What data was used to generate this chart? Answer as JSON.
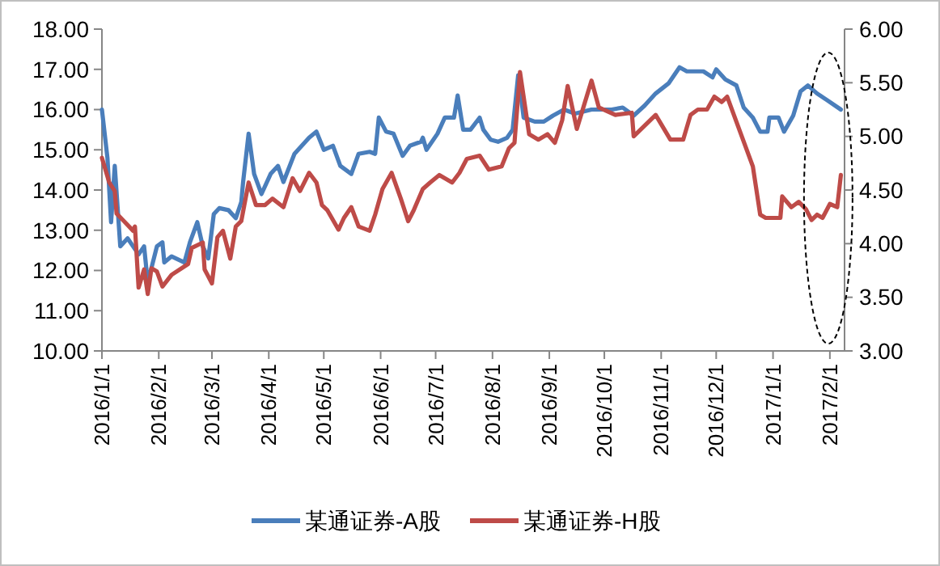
{
  "chart_data": {
    "type": "line",
    "legend": "bottom",
    "grid": false,
    "marker": "none",
    "line_style": "solid",
    "xlim": [
      "2016-01-01",
      "2017-02-09"
    ],
    "xticks": [
      {
        "value": "2016-01-01",
        "label": "2016/1/1"
      },
      {
        "value": "2016-02-01",
        "label": "2016/2/1"
      },
      {
        "value": "2016-03-01",
        "label": "2016/3/1"
      },
      {
        "value": "2016-04-01",
        "label": "2016/4/1"
      },
      {
        "value": "2016-05-01",
        "label": "2016/5/1"
      },
      {
        "value": "2016-06-01",
        "label": "2016/6/1"
      },
      {
        "value": "2016-07-01",
        "label": "2016/7/1"
      },
      {
        "value": "2016-08-01",
        "label": "2016/8/1"
      },
      {
        "value": "2016-09-01",
        "label": "2016/9/1"
      },
      {
        "value": "2016-10-01",
        "label": "2016/10/1"
      },
      {
        "value": "2016-11-01",
        "label": "2016/11/1"
      },
      {
        "value": "2016-12-01",
        "label": "2016/12/1"
      },
      {
        "value": "2017-01-01",
        "label": "2017/1/1"
      },
      {
        "value": "2017-02-01",
        "label": "2017/2/1"
      }
    ],
    "ylim": [
      10,
      18
    ],
    "yticks": [
      {
        "value": 10,
        "label": "10.00"
      },
      {
        "value": 11,
        "label": "11.00"
      },
      {
        "value": 12,
        "label": "12.00"
      },
      {
        "value": 13,
        "label": "13.00"
      },
      {
        "value": 14,
        "label": "14.00"
      },
      {
        "value": 15,
        "label": "15.00"
      },
      {
        "value": 16,
        "label": "16.00"
      },
      {
        "value": 17,
        "label": "17.00"
      },
      {
        "value": 18,
        "label": "18.00"
      }
    ],
    "y2lim": [
      3,
      6
    ],
    "y2ticks": [
      {
        "value": 3,
        "label": "3.00"
      },
      {
        "value": 3.5,
        "label": "3.50"
      },
      {
        "value": 4,
        "label": "4.00"
      },
      {
        "value": 4.5,
        "label": "4.50"
      },
      {
        "value": 5,
        "label": "5.00"
      },
      {
        "value": 5.5,
        "label": "5.50"
      },
      {
        "value": 6,
        "label": "6.00"
      }
    ],
    "series": [
      {
        "name": "某通证券-A股",
        "color": "#4a7ebb",
        "x": [
          "2016-01-01",
          "2016-01-04",
          "2016-01-06",
          "2016-01-08",
          "2016-01-11",
          "2016-01-15",
          "2016-01-21",
          "2016-01-24",
          "2016-01-26",
          "2016-01-31",
          "2016-02-03",
          "2016-02-04",
          "2016-02-08",
          "2016-02-15",
          "2016-02-18",
          "2016-02-22",
          "2016-02-25",
          "2016-02-28",
          "2016-03-02",
          "2016-03-05",
          "2016-03-10",
          "2016-03-14",
          "2016-03-17",
          "2016-03-18",
          "2016-03-21",
          "2016-03-24",
          "2016-03-28",
          "2016-04-02",
          "2016-04-06",
          "2016-04-09",
          "2016-04-15",
          "2016-04-23",
          "2016-04-27",
          "2016-05-01",
          "2016-05-06",
          "2016-05-10",
          "2016-05-16",
          "2016-05-20",
          "2016-05-26",
          "2016-05-29",
          "2016-05-31",
          "2016-06-04",
          "2016-06-08",
          "2016-06-13",
          "2016-06-17",
          "2016-06-23",
          "2016-06-24",
          "2016-06-26",
          "2016-07-02",
          "2016-07-06",
          "2016-07-11",
          "2016-07-13",
          "2016-07-16",
          "2016-07-20",
          "2016-07-25",
          "2016-07-27",
          "2016-07-31",
          "2016-08-04",
          "2016-08-09",
          "2016-08-12",
          "2016-08-15",
          "2016-08-18",
          "2016-08-24",
          "2016-08-29",
          "2016-09-03",
          "2016-09-09",
          "2016-09-15",
          "2016-09-24",
          "2016-09-29",
          "2016-10-05",
          "2016-10-11",
          "2016-10-17",
          "2016-10-23",
          "2016-10-29",
          "2016-11-05",
          "2016-11-11",
          "2016-11-15",
          "2016-11-24",
          "2016-11-29",
          "2016-12-01",
          "2016-12-06",
          "2016-12-12",
          "2016-12-16",
          "2016-12-21",
          "2016-12-25",
          "2016-12-29",
          "2016-12-30",
          "2017-01-04",
          "2017-01-07",
          "2017-01-12",
          "2017-01-16",
          "2017-01-20",
          "2017-01-25",
          "2017-01-30",
          "2017-02-07"
        ],
        "values": [
          16.0,
          14.8,
          13.2,
          14.6,
          12.6,
          12.8,
          12.4,
          12.6,
          11.7,
          12.6,
          12.7,
          12.2,
          12.35,
          12.2,
          12.7,
          13.2,
          12.6,
          12.3,
          13.4,
          13.55,
          13.5,
          13.3,
          13.7,
          14.2,
          15.4,
          14.4,
          13.9,
          14.4,
          14.6,
          14.2,
          14.9,
          15.3,
          15.45,
          15.0,
          15.1,
          14.6,
          14.4,
          14.9,
          14.95,
          14.9,
          15.8,
          15.45,
          15.4,
          14.85,
          15.1,
          15.2,
          15.3,
          15.0,
          15.4,
          15.8,
          15.8,
          16.35,
          15.5,
          15.5,
          15.8,
          15.5,
          15.25,
          15.2,
          15.3,
          15.5,
          16.85,
          15.8,
          15.7,
          15.7,
          15.85,
          16.0,
          15.9,
          16.0,
          16.0,
          16.0,
          16.05,
          15.85,
          16.1,
          16.4,
          16.65,
          17.05,
          16.95,
          16.95,
          16.8,
          17.0,
          16.75,
          16.6,
          16.05,
          15.8,
          15.45,
          15.45,
          15.8,
          15.8,
          15.45,
          15.85,
          16.45,
          16.6,
          16.4,
          16.25,
          16.0
        ]
      },
      {
        "name": "某通证券-H股",
        "color": "#be4b48",
        "axis": "y2",
        "x": [
          "2016-01-01",
          "2016-01-05",
          "2016-01-08",
          "2016-01-09",
          "2016-01-13",
          "2016-01-18",
          "2016-01-19",
          "2016-01-21",
          "2016-01-24",
          "2016-01-26",
          "2016-01-28",
          "2016-01-31",
          "2016-02-03",
          "2016-02-08",
          "2016-02-17",
          "2016-02-19",
          "2016-02-25",
          "2016-02-26",
          "2016-03-01",
          "2016-03-04",
          "2016-03-07",
          "2016-03-11",
          "2016-03-14",
          "2016-03-17",
          "2016-03-21",
          "2016-03-25",
          "2016-03-30",
          "2016-04-03",
          "2016-04-09",
          "2016-04-14",
          "2016-04-18",
          "2016-04-23",
          "2016-04-27",
          "2016-04-30",
          "2016-05-03",
          "2016-05-09",
          "2016-05-12",
          "2016-05-16",
          "2016-05-20",
          "2016-05-26",
          "2016-05-29",
          "2016-06-02",
          "2016-06-07",
          "2016-06-12",
          "2016-06-16",
          "2016-06-19",
          "2016-06-24",
          "2016-06-28",
          "2016-07-03",
          "2016-07-10",
          "2016-07-14",
          "2016-07-18",
          "2016-07-25",
          "2016-07-30",
          "2016-08-06",
          "2016-08-10",
          "2016-08-13",
          "2016-08-16",
          "2016-08-21",
          "2016-08-26",
          "2016-08-31",
          "2016-09-04",
          "2016-09-08",
          "2016-09-11",
          "2016-09-16",
          "2016-09-24",
          "2016-09-28",
          "2016-10-07",
          "2016-10-16",
          "2016-10-17",
          "2016-10-23",
          "2016-10-29",
          "2016-11-06",
          "2016-11-13",
          "2016-11-17",
          "2016-11-21",
          "2016-11-26",
          "2016-11-30",
          "2016-12-04",
          "2016-12-07",
          "2016-12-21",
          "2016-12-25",
          "2016-12-28",
          "2017-01-05",
          "2017-01-06",
          "2017-01-11",
          "2017-01-15",
          "2017-01-19",
          "2017-01-22",
          "2017-01-25",
          "2017-01-28",
          "2017-02-01",
          "2017-02-05",
          "2017-02-07"
        ],
        "values": [
          4.8,
          4.57,
          4.49,
          4.28,
          4.21,
          4.12,
          4.16,
          3.59,
          3.76,
          3.53,
          3.77,
          3.74,
          3.6,
          3.71,
          3.81,
          3.96,
          4.01,
          3.76,
          3.63,
          4.06,
          4.12,
          3.86,
          4.16,
          4.21,
          4.57,
          4.36,
          4.36,
          4.42,
          4.34,
          4.61,
          4.49,
          4.66,
          4.57,
          4.36,
          4.31,
          4.13,
          4.24,
          4.34,
          4.16,
          4.12,
          4.27,
          4.51,
          4.66,
          4.42,
          4.21,
          4.31,
          4.51,
          4.57,
          4.64,
          4.57,
          4.66,
          4.79,
          4.82,
          4.69,
          4.72,
          4.89,
          4.94,
          5.6,
          5.02,
          4.97,
          5.02,
          4.94,
          5.15,
          5.47,
          5.07,
          5.52,
          5.27,
          5.2,
          5.22,
          5.0,
          5.1,
          5.2,
          4.97,
          4.97,
          5.2,
          5.25,
          5.25,
          5.37,
          5.32,
          5.37,
          4.72,
          4.27,
          4.24,
          4.24,
          4.44,
          4.34,
          4.39,
          4.32,
          4.22,
          4.27,
          4.24,
          4.37,
          4.34,
          4.64
        ]
      }
    ]
  }
}
